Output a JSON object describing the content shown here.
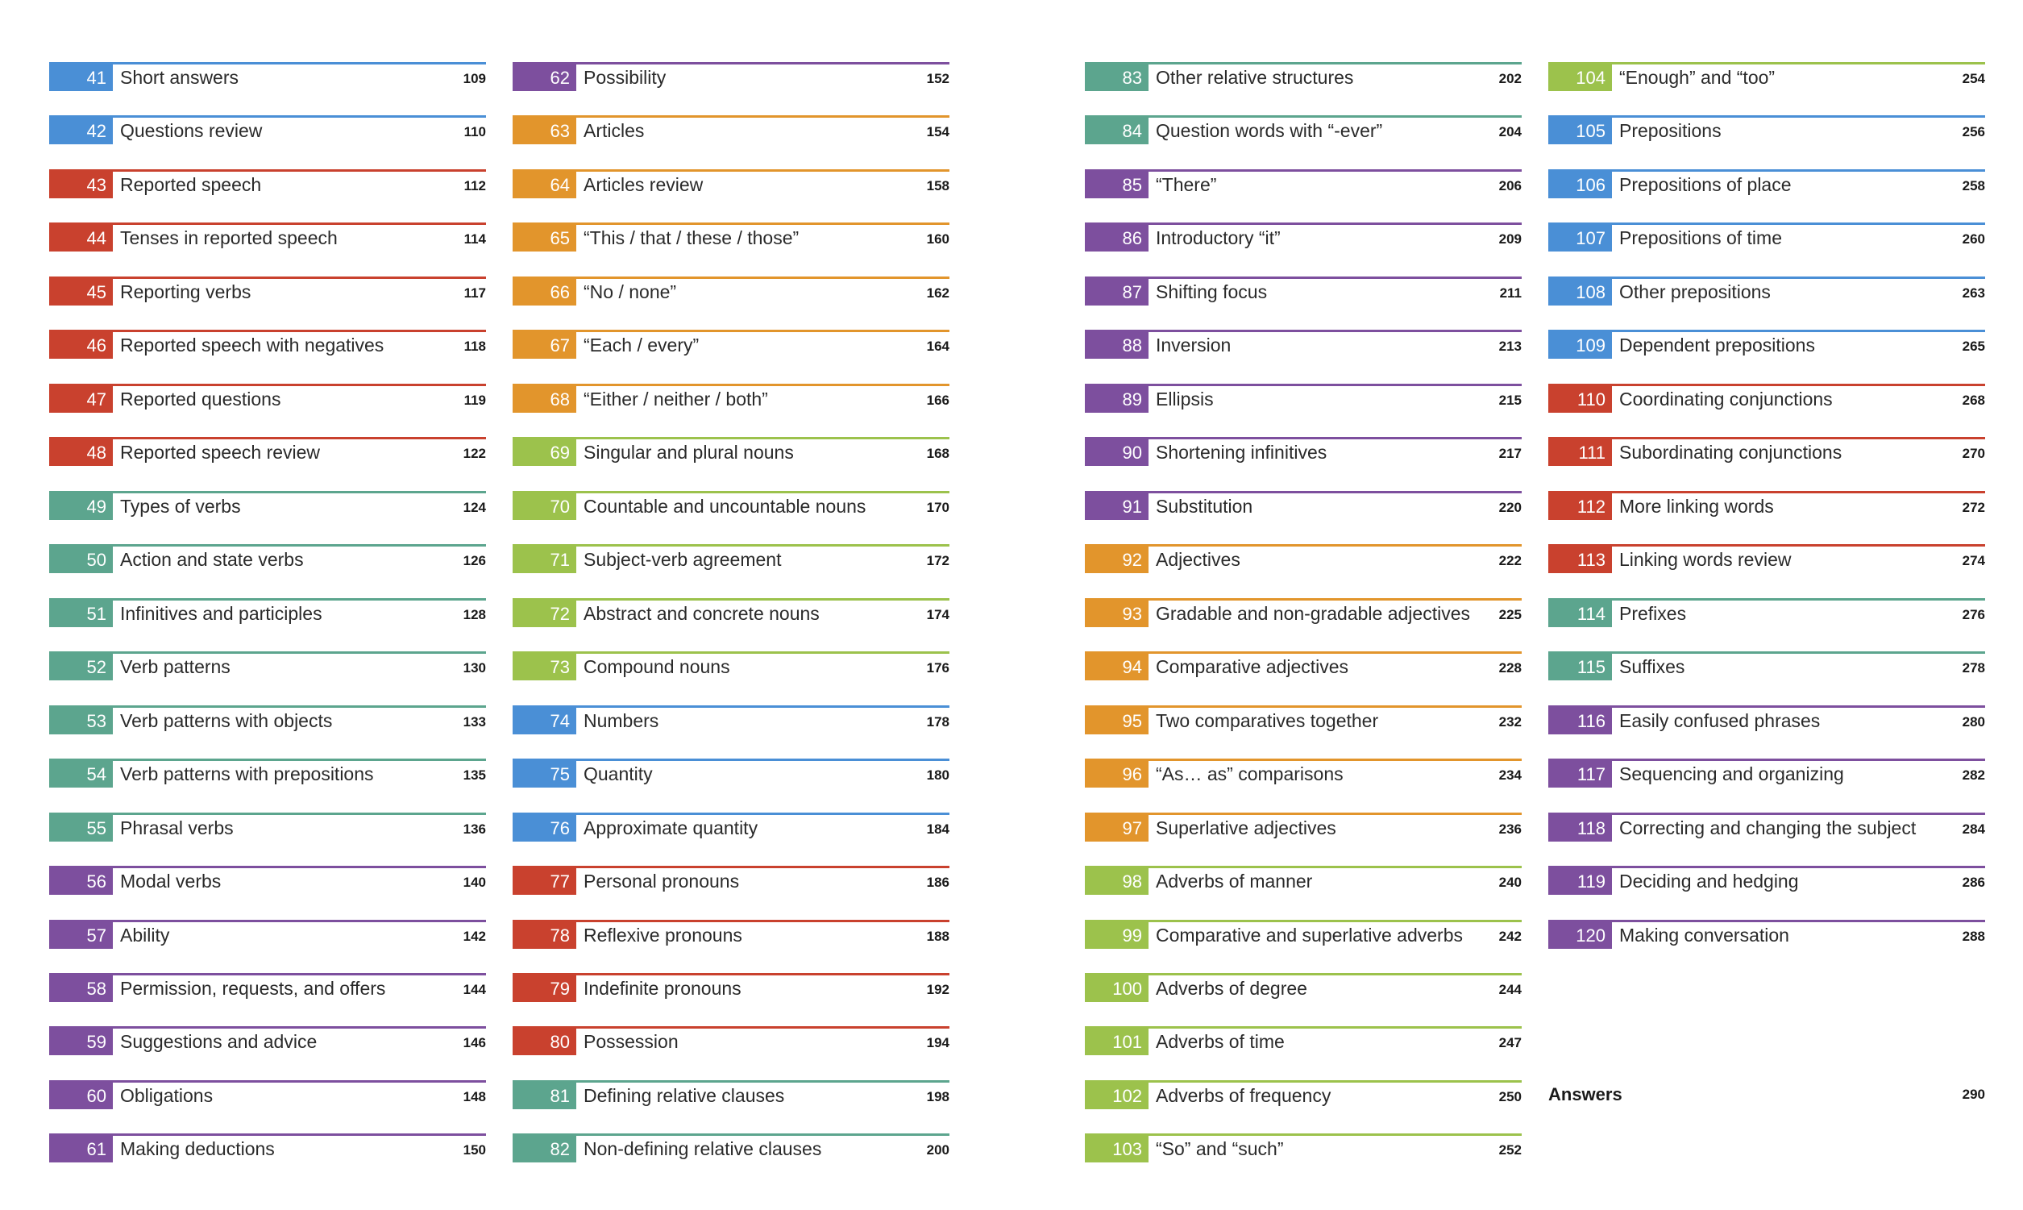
{
  "colors": {
    "blue": "#4a8fd6",
    "red": "#c9412e",
    "teal": "#5ca58e",
    "purple": "#7d4f9e",
    "orange": "#e2952c",
    "green": "#9cc24c"
  },
  "columns": [
    {
      "entries": [
        {
          "number": "41",
          "title": "Short answers",
          "page": "109",
          "color": "#4a8fd6"
        },
        {
          "number": "42",
          "title": "Questions review",
          "page": "110",
          "color": "#4a8fd6"
        },
        {
          "number": "43",
          "title": "Reported speech",
          "page": "112",
          "color": "#c9412e"
        },
        {
          "number": "44",
          "title": "Tenses in reported speech",
          "page": "114",
          "color": "#c9412e"
        },
        {
          "number": "45",
          "title": "Reporting verbs",
          "page": "117",
          "color": "#c9412e"
        },
        {
          "number": "46",
          "title": "Reported speech with negatives",
          "page": "118",
          "color": "#c9412e"
        },
        {
          "number": "47",
          "title": "Reported questions",
          "page": "119",
          "color": "#c9412e"
        },
        {
          "number": "48",
          "title": "Reported speech review",
          "page": "122",
          "color": "#c9412e"
        },
        {
          "number": "49",
          "title": "Types of verbs",
          "page": "124",
          "color": "#5ca58e"
        },
        {
          "number": "50",
          "title": "Action and state verbs",
          "page": "126",
          "color": "#5ca58e"
        },
        {
          "number": "51",
          "title": "Infinitives and participles",
          "page": "128",
          "color": "#5ca58e"
        },
        {
          "number": "52",
          "title": "Verb patterns",
          "page": "130",
          "color": "#5ca58e"
        },
        {
          "number": "53",
          "title": "Verb patterns with objects",
          "page": "133",
          "color": "#5ca58e"
        },
        {
          "number": "54",
          "title": "Verb patterns with prepositions",
          "page": "135",
          "color": "#5ca58e"
        },
        {
          "number": "55",
          "title": "Phrasal verbs",
          "page": "136",
          "color": "#5ca58e"
        },
        {
          "number": "56",
          "title": "Modal verbs",
          "page": "140",
          "color": "#7d4f9e"
        },
        {
          "number": "57",
          "title": "Ability",
          "page": "142",
          "color": "#7d4f9e"
        },
        {
          "number": "58",
          "title": "Permission, requests, and offers",
          "page": "144",
          "color": "#7d4f9e"
        },
        {
          "number": "59",
          "title": "Suggestions and advice",
          "page": "146",
          "color": "#7d4f9e"
        },
        {
          "number": "60",
          "title": "Obligations",
          "page": "148",
          "color": "#7d4f9e"
        },
        {
          "number": "61",
          "title": "Making deductions",
          "page": "150",
          "color": "#7d4f9e"
        }
      ]
    },
    {
      "entries": [
        {
          "number": "62",
          "title": "Possibility",
          "page": "152",
          "color": "#7d4f9e"
        },
        {
          "number": "63",
          "title": "Articles",
          "page": "154",
          "color": "#e2952c"
        },
        {
          "number": "64",
          "title": "Articles review",
          "page": "158",
          "color": "#e2952c"
        },
        {
          "number": "65",
          "title": "“This / that / these / those”",
          "page": "160",
          "color": "#e2952c"
        },
        {
          "number": "66",
          "title": "“No / none”",
          "page": "162",
          "color": "#e2952c"
        },
        {
          "number": "67",
          "title": "“Each / every”",
          "page": "164",
          "color": "#e2952c"
        },
        {
          "number": "68",
          "title": "“Either / neither / both”",
          "page": "166",
          "color": "#e2952c"
        },
        {
          "number": "69",
          "title": "Singular and plural nouns",
          "page": "168",
          "color": "#9cc24c"
        },
        {
          "number": "70",
          "title": "Countable and uncountable nouns",
          "page": "170",
          "color": "#9cc24c"
        },
        {
          "number": "71",
          "title": "Subject-verb agreement",
          "page": "172",
          "color": "#9cc24c"
        },
        {
          "number": "72",
          "title": "Abstract and concrete nouns",
          "page": "174",
          "color": "#9cc24c"
        },
        {
          "number": "73",
          "title": "Compound nouns",
          "page": "176",
          "color": "#9cc24c"
        },
        {
          "number": "74",
          "title": "Numbers",
          "page": "178",
          "color": "#4a8fd6"
        },
        {
          "number": "75",
          "title": "Quantity",
          "page": "180",
          "color": "#4a8fd6"
        },
        {
          "number": "76",
          "title": "Approximate quantity",
          "page": "184",
          "color": "#4a8fd6"
        },
        {
          "number": "77",
          "title": "Personal pronouns",
          "page": "186",
          "color": "#c9412e"
        },
        {
          "number": "78",
          "title": "Reflexive pronouns",
          "page": "188",
          "color": "#c9412e"
        },
        {
          "number": "79",
          "title": "Indefinite pronouns",
          "page": "192",
          "color": "#c9412e"
        },
        {
          "number": "80",
          "title": "Possession",
          "page": "194",
          "color": "#c9412e"
        },
        {
          "number": "81",
          "title": "Defining relative clauses",
          "page": "198",
          "color": "#5ca58e"
        },
        {
          "number": "82",
          "title": "Non-defining relative clauses",
          "page": "200",
          "color": "#5ca58e"
        }
      ]
    },
    {
      "entries": [
        {
          "number": "83",
          "title": "Other relative structures",
          "page": "202",
          "color": "#5ca58e"
        },
        {
          "number": "84",
          "title": "Question words with “-ever”",
          "page": "204",
          "color": "#5ca58e"
        },
        {
          "number": "85",
          "title": "“There”",
          "page": "206",
          "color": "#7d4f9e"
        },
        {
          "number": "86",
          "title": "Introductory “it”",
          "page": "209",
          "color": "#7d4f9e"
        },
        {
          "number": "87",
          "title": "Shifting focus",
          "page": "211",
          "color": "#7d4f9e"
        },
        {
          "number": "88",
          "title": "Inversion",
          "page": "213",
          "color": "#7d4f9e"
        },
        {
          "number": "89",
          "title": "Ellipsis",
          "page": "215",
          "color": "#7d4f9e"
        },
        {
          "number": "90",
          "title": "Shortening infinitives",
          "page": "217",
          "color": "#7d4f9e"
        },
        {
          "number": "91",
          "title": "Substitution",
          "page": "220",
          "color": "#7d4f9e"
        },
        {
          "number": "92",
          "title": "Adjectives",
          "page": "222",
          "color": "#e2952c"
        },
        {
          "number": "93",
          "title": "Gradable and non-gradable adjectives",
          "page": "225",
          "color": "#e2952c"
        },
        {
          "number": "94",
          "title": "Comparative adjectives",
          "page": "228",
          "color": "#e2952c"
        },
        {
          "number": "95",
          "title": "Two comparatives together",
          "page": "232",
          "color": "#e2952c"
        },
        {
          "number": "96",
          "title": "“As… as” comparisons",
          "page": "234",
          "color": "#e2952c"
        },
        {
          "number": "97",
          "title": "Superlative adjectives",
          "page": "236",
          "color": "#e2952c"
        },
        {
          "number": "98",
          "title": "Adverbs of manner",
          "page": "240",
          "color": "#9cc24c"
        },
        {
          "number": "99",
          "title": "Comparative and superlative adverbs",
          "page": "242",
          "color": "#9cc24c"
        },
        {
          "number": "100",
          "title": "Adverbs of degree",
          "page": "244",
          "color": "#9cc24c"
        },
        {
          "number": "101",
          "title": "Adverbs of time",
          "page": "247",
          "color": "#9cc24c"
        },
        {
          "number": "102",
          "title": "Adverbs of frequency",
          "page": "250",
          "color": "#9cc24c"
        },
        {
          "number": "103",
          "title": "“So” and “such”",
          "page": "252",
          "color": "#9cc24c"
        }
      ]
    },
    {
      "entries": [
        {
          "number": "104",
          "title": "“Enough” and “too”",
          "page": "254",
          "color": "#9cc24c"
        },
        {
          "number": "105",
          "title": "Prepositions",
          "page": "256",
          "color": "#4a8fd6"
        },
        {
          "number": "106",
          "title": "Prepositions of place",
          "page": "258",
          "color": "#4a8fd6"
        },
        {
          "number": "107",
          "title": "Prepositions of time",
          "page": "260",
          "color": "#4a8fd6"
        },
        {
          "number": "108",
          "title": "Other prepositions",
          "page": "263",
          "color": "#4a8fd6"
        },
        {
          "number": "109",
          "title": "Dependent prepositions",
          "page": "265",
          "color": "#4a8fd6"
        },
        {
          "number": "110",
          "title": "Coordinating conjunctions",
          "page": "268",
          "color": "#c9412e"
        },
        {
          "number": "111",
          "title": "Subordinating conjunctions",
          "page": "270",
          "color": "#c9412e"
        },
        {
          "number": "112",
          "title": "More linking words",
          "page": "272",
          "color": "#c9412e"
        },
        {
          "number": "113",
          "title": "Linking words review",
          "page": "274",
          "color": "#c9412e"
        },
        {
          "number": "114",
          "title": "Prefixes",
          "page": "276",
          "color": "#5ca58e"
        },
        {
          "number": "115",
          "title": "Suffixes",
          "page": "278",
          "color": "#5ca58e"
        },
        {
          "number": "116",
          "title": "Easily confused phrases",
          "page": "280",
          "color": "#7d4f9e"
        },
        {
          "number": "117",
          "title": "Sequencing and organizing",
          "page": "282",
          "color": "#7d4f9e"
        },
        {
          "number": "118",
          "title": "Correcting and changing the subject",
          "page": "284",
          "color": "#7d4f9e"
        },
        {
          "number": "119",
          "title": "Deciding and hedging",
          "page": "286",
          "color": "#7d4f9e"
        },
        {
          "number": "120",
          "title": "Making conversation",
          "page": "288",
          "color": "#7d4f9e"
        }
      ],
      "answers": {
        "label": "Answers",
        "page": "290"
      }
    }
  ]
}
